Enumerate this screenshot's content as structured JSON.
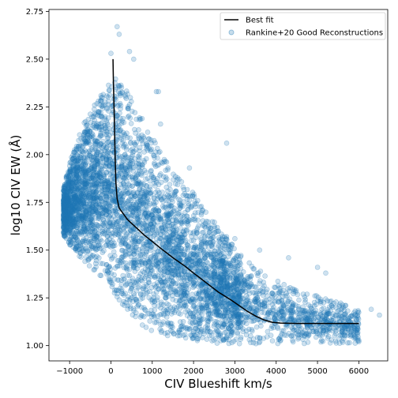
{
  "chart_data": {
    "type": "scatter",
    "xlabel": "CIV Blueshift km/s",
    "ylabel": "log10 CIV EW (Å)",
    "xlim": [
      -1500,
      6700
    ],
    "ylim": [
      0.92,
      2.76
    ],
    "xticks": [
      -1000,
      0,
      1000,
      2000,
      3000,
      4000,
      5000,
      6000
    ],
    "yticks": [
      1.0,
      1.25,
      1.5,
      1.75,
      2.0,
      2.25,
      2.5,
      2.75
    ],
    "xtick_labels": [
      "−1000",
      "0",
      "1000",
      "2000",
      "3000",
      "4000",
      "5000",
      "6000"
    ],
    "ytick_labels": [
      "1.00",
      "1.25",
      "1.50",
      "1.75",
      "2.00",
      "2.25",
      "2.50",
      "2.75"
    ],
    "grid": false,
    "legend_position": "top-right",
    "series": [
      {
        "name": "Best fit",
        "kind": "line",
        "color": "#000000",
        "x": [
          50,
          60,
          80,
          100,
          120,
          150,
          200,
          300,
          400,
          600,
          800,
          1000,
          1200,
          1500,
          1800,
          2000,
          2300,
          2600,
          2900,
          3100,
          3300,
          3500,
          3700,
          3900,
          4100,
          4500,
          5000,
          5500,
          6000
        ],
        "y": [
          2.5,
          2.38,
          2.2,
          2.0,
          1.85,
          1.77,
          1.72,
          1.69,
          1.66,
          1.62,
          1.58,
          1.545,
          1.51,
          1.46,
          1.415,
          1.38,
          1.33,
          1.28,
          1.24,
          1.21,
          1.18,
          1.155,
          1.135,
          1.122,
          1.118,
          1.116,
          1.116,
          1.116,
          1.116
        ]
      },
      {
        "name": "Rankine+20 Good Reconstructions",
        "kind": "scatter",
        "color": "#1f77b4",
        "envelope_lower": {
          "x": [
            -1200,
            -1000,
            -600,
            -200,
            0,
            200,
            500,
            800,
            1200,
            1600,
            2000,
            2400,
            2800,
            3200,
            3600,
            4000,
            4400,
            5000,
            5600,
            6000
          ],
          "y": [
            1.6,
            1.52,
            1.42,
            1.34,
            1.29,
            1.22,
            1.15,
            1.1,
            1.05,
            1.03,
            1.02,
            1.01,
            1.01,
            1.01,
            1.01,
            1.01,
            1.01,
            1.01,
            1.01,
            1.01
          ]
        },
        "envelope_upper": {
          "x": [
            -1200,
            -1000,
            -600,
            -200,
            0,
            200,
            500,
            800,
            1200,
            1600,
            2000,
            2400,
            2800,
            3200,
            3600,
            4000,
            4400,
            5000,
            5600,
            6000
          ],
          "y": [
            1.78,
            1.96,
            2.2,
            2.33,
            2.42,
            2.4,
            2.3,
            2.18,
            2.02,
            1.9,
            1.8,
            1.68,
            1.57,
            1.47,
            1.4,
            1.35,
            1.3,
            1.26,
            1.22,
            1.2
          ]
        },
        "outliers": [
          {
            "x": 150,
            "y": 2.67
          },
          {
            "x": 200,
            "y": 2.63
          },
          {
            "x": 550,
            "y": 2.5
          },
          {
            "x": 0,
            "y": 2.53
          },
          {
            "x": 450,
            "y": 2.54
          },
          {
            "x": 2800,
            "y": 2.06
          },
          {
            "x": 6300,
            "y": 1.19
          },
          {
            "x": 6500,
            "y": 1.16
          },
          {
            "x": 5200,
            "y": 1.38
          },
          {
            "x": 5000,
            "y": 1.41
          },
          {
            "x": 4300,
            "y": 1.46
          },
          {
            "x": 3600,
            "y": 1.5
          },
          {
            "x": 3000,
            "y": 1.56
          },
          {
            "x": 2600,
            "y": 1.6
          },
          {
            "x": 1900,
            "y": 1.93
          },
          {
            "x": 1200,
            "y": 2.16
          },
          {
            "x": 1100,
            "y": 2.33
          },
          {
            "x": 1150,
            "y": 2.33
          },
          {
            "x": 5800,
            "y": 1.05
          },
          {
            "x": 6000,
            "y": 1.02
          },
          {
            "x": 5900,
            "y": 1.09
          }
        ]
      }
    ]
  }
}
